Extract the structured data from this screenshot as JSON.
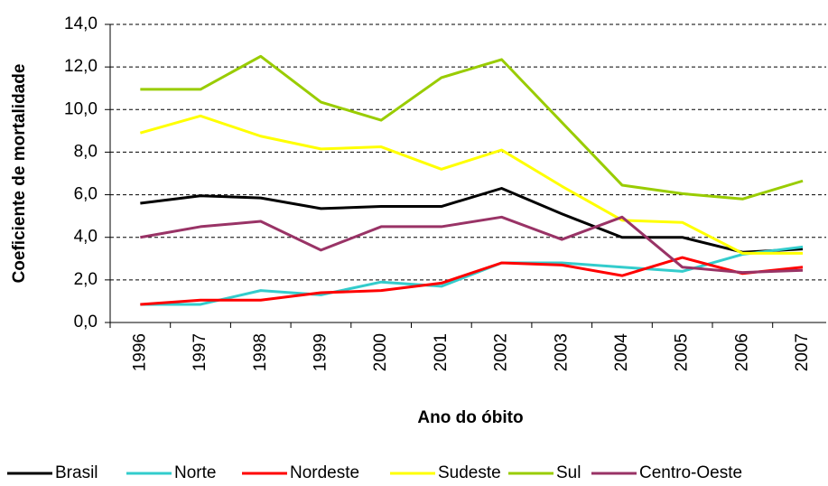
{
  "chart_data": {
    "type": "line",
    "x_label": "Ano do óbito",
    "y_label": "Coeficiente de mortalidade",
    "categories": [
      "1996",
      "1997",
      "1998",
      "1999",
      "2000",
      "2001",
      "2002",
      "2003",
      "2004",
      "2005",
      "2006",
      "2007"
    ],
    "ylim": [
      0,
      14
    ],
    "yticks": [
      {
        "value": 0,
        "label": "0,0"
      },
      {
        "value": 2,
        "label": "2,0"
      },
      {
        "value": 4,
        "label": "4,0"
      },
      {
        "value": 6,
        "label": "6,0"
      },
      {
        "value": 8,
        "label": "8,0"
      },
      {
        "value": 10,
        "label": "10,0"
      },
      {
        "value": 12,
        "label": "12,0"
      },
      {
        "value": 14,
        "label": "14,0"
      }
    ],
    "grid": true,
    "legend": "bottom",
    "series": [
      {
        "name": "Brasil",
        "color": "#000000",
        "values": [
          5.6,
          5.95,
          5.85,
          5.35,
          5.45,
          5.45,
          6.3,
          5.1,
          4.0,
          4.0,
          3.3,
          3.45
        ]
      },
      {
        "name": "Norte",
        "color": "#33cccc",
        "values": [
          0.85,
          0.85,
          1.5,
          1.3,
          1.9,
          1.7,
          2.8,
          2.8,
          2.6,
          2.4,
          3.2,
          3.55
        ]
      },
      {
        "name": "Nordeste",
        "color": "#ff0000",
        "values": [
          0.85,
          1.05,
          1.05,
          1.4,
          1.5,
          1.85,
          2.8,
          2.7,
          2.2,
          3.05,
          2.3,
          2.6
        ]
      },
      {
        "name": "Sudeste",
        "color": "#ffff00",
        "values": [
          8.9,
          9.7,
          8.75,
          8.15,
          8.25,
          7.2,
          8.1,
          6.4,
          4.8,
          4.7,
          3.25,
          3.25
        ]
      },
      {
        "name": "Sul",
        "color": "#99cc00",
        "values": [
          10.95,
          10.95,
          12.5,
          10.35,
          9.5,
          11.5,
          12.35,
          9.4,
          6.45,
          6.05,
          5.8,
          6.65
        ]
      },
      {
        "name": "Centro-Oeste",
        "color": "#993366",
        "values": [
          4.0,
          4.5,
          4.75,
          3.4,
          4.5,
          4.5,
          4.95,
          3.9,
          4.95,
          2.6,
          2.35,
          2.45
        ]
      }
    ]
  }
}
